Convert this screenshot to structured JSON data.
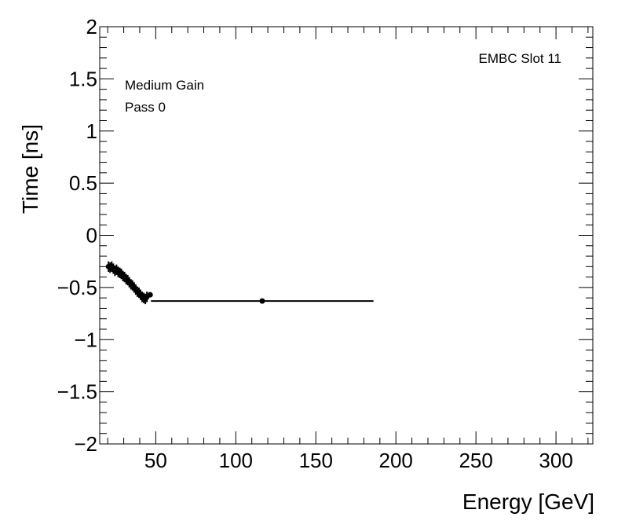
{
  "chart_data": {
    "type": "scatter",
    "title": "",
    "xlabel": "Energy [GeV]",
    "ylabel": "Time [ns]",
    "xlim": [
      15,
      323
    ],
    "ylim": [
      -2,
      2
    ],
    "x_ticks": [
      50,
      100,
      150,
      200,
      250,
      300
    ],
    "x_tick_labels": [
      "50",
      "100",
      "150",
      "200",
      "250",
      "300"
    ],
    "y_ticks": [
      -2,
      -1.5,
      -1,
      -0.5,
      0,
      0.5,
      1,
      1.5,
      2
    ],
    "y_tick_labels": [
      "−2",
      "−1.5",
      "−1",
      "−0.5",
      "0",
      "0.5",
      "1",
      "1.5",
      "2"
    ],
    "grid": false,
    "annotations": {
      "slot": "EMBC Slot 11",
      "gain": "Medium Gain",
      "pass": "Pass 0"
    },
    "series": [
      {
        "points": [
          {
            "x": 20.5,
            "y": -0.3,
            "xerr": 0.6,
            "yerr": 0.05
          },
          {
            "x": 21.5,
            "y": -0.31,
            "xerr": 0.6,
            "yerr": 0.05
          },
          {
            "x": 22.5,
            "y": -0.3,
            "xerr": 0.6,
            "yerr": 0.05
          },
          {
            "x": 23.5,
            "y": -0.32,
            "xerr": 0.6,
            "yerr": 0.05
          },
          {
            "x": 24.5,
            "y": -0.34,
            "xerr": 0.6,
            "yerr": 0.05
          },
          {
            "x": 25.5,
            "y": -0.33,
            "xerr": 0.6,
            "yerr": 0.05
          },
          {
            "x": 26.5,
            "y": -0.35,
            "xerr": 0.6,
            "yerr": 0.05
          },
          {
            "x": 27.5,
            "y": -0.36,
            "xerr": 0.6,
            "yerr": 0.05
          },
          {
            "x": 28.5,
            "y": -0.37,
            "xerr": 0.6,
            "yerr": 0.05
          },
          {
            "x": 29.5,
            "y": -0.39,
            "xerr": 0.6,
            "yerr": 0.05
          },
          {
            "x": 30.5,
            "y": -0.4,
            "xerr": 0.6,
            "yerr": 0.05
          },
          {
            "x": 31.5,
            "y": -0.42,
            "xerr": 0.6,
            "yerr": 0.05
          },
          {
            "x": 32.5,
            "y": -0.43,
            "xerr": 0.6,
            "yerr": 0.05
          },
          {
            "x": 33.5,
            "y": -0.45,
            "xerr": 0.6,
            "yerr": 0.05
          },
          {
            "x": 34.5,
            "y": -0.47,
            "xerr": 0.6,
            "yerr": 0.05
          },
          {
            "x": 35.5,
            "y": -0.48,
            "xerr": 0.6,
            "yerr": 0.05
          },
          {
            "x": 36.5,
            "y": -0.5,
            "xerr": 0.6,
            "yerr": 0.05
          },
          {
            "x": 37.5,
            "y": -0.52,
            "xerr": 0.6,
            "yerr": 0.05
          },
          {
            "x": 38.5,
            "y": -0.54,
            "xerr": 0.6,
            "yerr": 0.05
          },
          {
            "x": 39.5,
            "y": -0.55,
            "xerr": 0.6,
            "yerr": 0.05
          },
          {
            "x": 40.5,
            "y": -0.57,
            "xerr": 0.6,
            "yerr": 0.05
          },
          {
            "x": 41.5,
            "y": -0.59,
            "xerr": 0.6,
            "yerr": 0.05
          },
          {
            "x": 42.5,
            "y": -0.6,
            "xerr": 0.6,
            "yerr": 0.05
          },
          {
            "x": 43.5,
            "y": -0.61,
            "xerr": 0.6,
            "yerr": 0.05
          },
          {
            "x": 44.5,
            "y": -0.59,
            "xerr": 0.6,
            "yerr": 0.05
          },
          {
            "x": 46.5,
            "y": -0.57,
            "xerr": 1.5,
            "yerr": 0.02
          },
          {
            "x": 116.5,
            "y": -0.63,
            "xerr": 69.5,
            "yerr": 0.01
          }
        ]
      }
    ],
    "marker_color": "#000000",
    "frame_color": "#000000",
    "background": "#ffffff"
  }
}
